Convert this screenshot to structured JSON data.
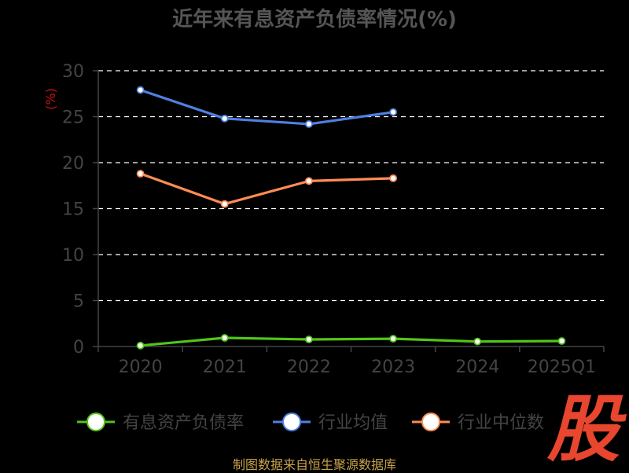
{
  "page": {
    "source_text": "制图数据来自恒生聚源数据库",
    "logo_text": "股"
  },
  "colors": {
    "background": "#000000",
    "grid": "#ffffff",
    "axis": "#444444",
    "series": [
      "#52c41a",
      "#4f80e1",
      "#ff8c55"
    ]
  },
  "chart_data": {
    "type": "line",
    "title": "近年来有息资产负债率情况(%)",
    "xlabel": "",
    "ylabel": "(%)",
    "categories": [
      "2020",
      "2021",
      "2022",
      "2023",
      "2024",
      "2025Q1"
    ],
    "ylim": [
      0,
      30
    ],
    "yticks": [
      0,
      5,
      10,
      15,
      20,
      25,
      30
    ],
    "grid": true,
    "legend_position": "bottom",
    "series": [
      {
        "name": "有息资产负债率",
        "values": [
          0.1,
          0.94,
          0.77,
          0.85,
          0.54,
          0.6
        ]
      },
      {
        "name": "行业均值",
        "values": [
          27.9,
          24.8,
          24.2,
          25.5,
          null,
          null
        ]
      },
      {
        "name": "行业中位数",
        "values": [
          18.8,
          15.5,
          18.0,
          18.3,
          null,
          null
        ]
      }
    ]
  }
}
